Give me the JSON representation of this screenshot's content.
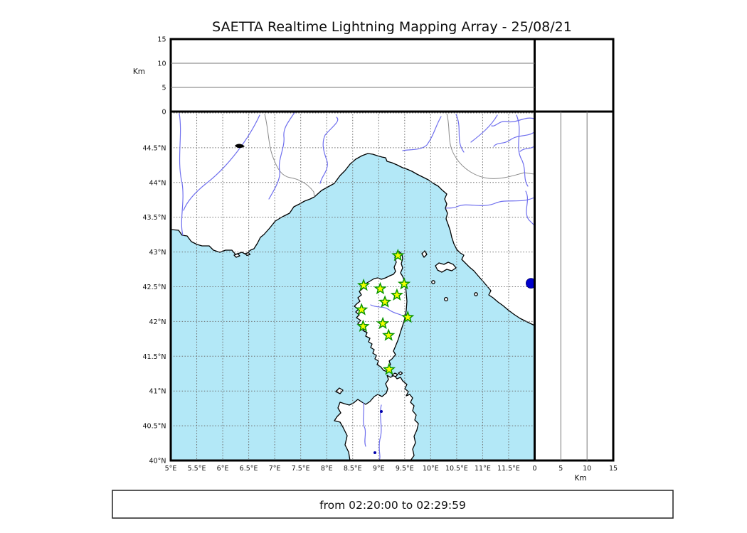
{
  "title": "SAETTA Realtime Lightning Mapping Array - 25/08/21",
  "footer": {
    "time_range": "from 02:20:00 to 02:29:59"
  },
  "chart_data": {
    "type": "scatter",
    "map": {
      "lon_range": [
        5,
        12
      ],
      "lat_range": [
        40,
        45.02
      ],
      "grid_step_deg": 0.5,
      "lon_ticks": {
        "values": [
          5,
          5.5,
          6,
          6.5,
          7,
          7.5,
          8,
          8.5,
          9,
          9.5,
          10,
          10.5,
          11,
          11.5
        ],
        "labels": [
          "5°E",
          "5.5°E",
          "6°E",
          "6.5°E",
          "7°E",
          "7.5°E",
          "8°E",
          "8.5°E",
          "9°E",
          "9.5°E",
          "10°E",
          "10.5°E",
          "11°E",
          "11.5°E"
        ]
      },
      "lat_ticks": {
        "values": [
          40,
          40.5,
          41,
          41.5,
          42,
          42.5,
          43,
          43.5,
          44,
          44.5
        ],
        "labels": [
          "40°N",
          "40.5°N",
          "41°N",
          "41.5°N",
          "42°N",
          "42.5°N",
          "43°N",
          "43.5°N",
          "44°N",
          "44.5°N"
        ]
      }
    },
    "altitude_axis": {
      "unit_label": "Km",
      "range": [
        0,
        15
      ],
      "tick_values": [
        0,
        5,
        10,
        15
      ],
      "tick_labels": [
        "0",
        "5",
        "10",
        "15"
      ],
      "gridlines": [
        5,
        10
      ]
    },
    "stations": [
      {
        "lon": 9.37,
        "lat": 42.95
      },
      {
        "lon": 8.71,
        "lat": 42.52
      },
      {
        "lon": 9.03,
        "lat": 42.47
      },
      {
        "lon": 9.49,
        "lat": 42.54
      },
      {
        "lon": 9.35,
        "lat": 42.38
      },
      {
        "lon": 9.12,
        "lat": 42.28
      },
      {
        "lon": 8.67,
        "lat": 42.17
      },
      {
        "lon": 9.56,
        "lat": 42.06
      },
      {
        "lon": 9.08,
        "lat": 41.97
      },
      {
        "lon": 8.7,
        "lat": 41.93
      },
      {
        "lon": 9.19,
        "lat": 41.8
      },
      {
        "lon": 9.2,
        "lat": 41.31
      }
    ],
    "points": [
      {
        "lon": 11.93,
        "lat": 42.55
      }
    ]
  },
  "colors": {
    "sea": "#b3e8f7",
    "land": "#ffffff",
    "coast": "#000000",
    "river": "#6f6fee",
    "admin_border": "#8a8a8a",
    "grid": "#6e6e6e",
    "station_fill": "#f4ff00",
    "station_stroke": "#0a9500",
    "point": "#0000cc"
  }
}
